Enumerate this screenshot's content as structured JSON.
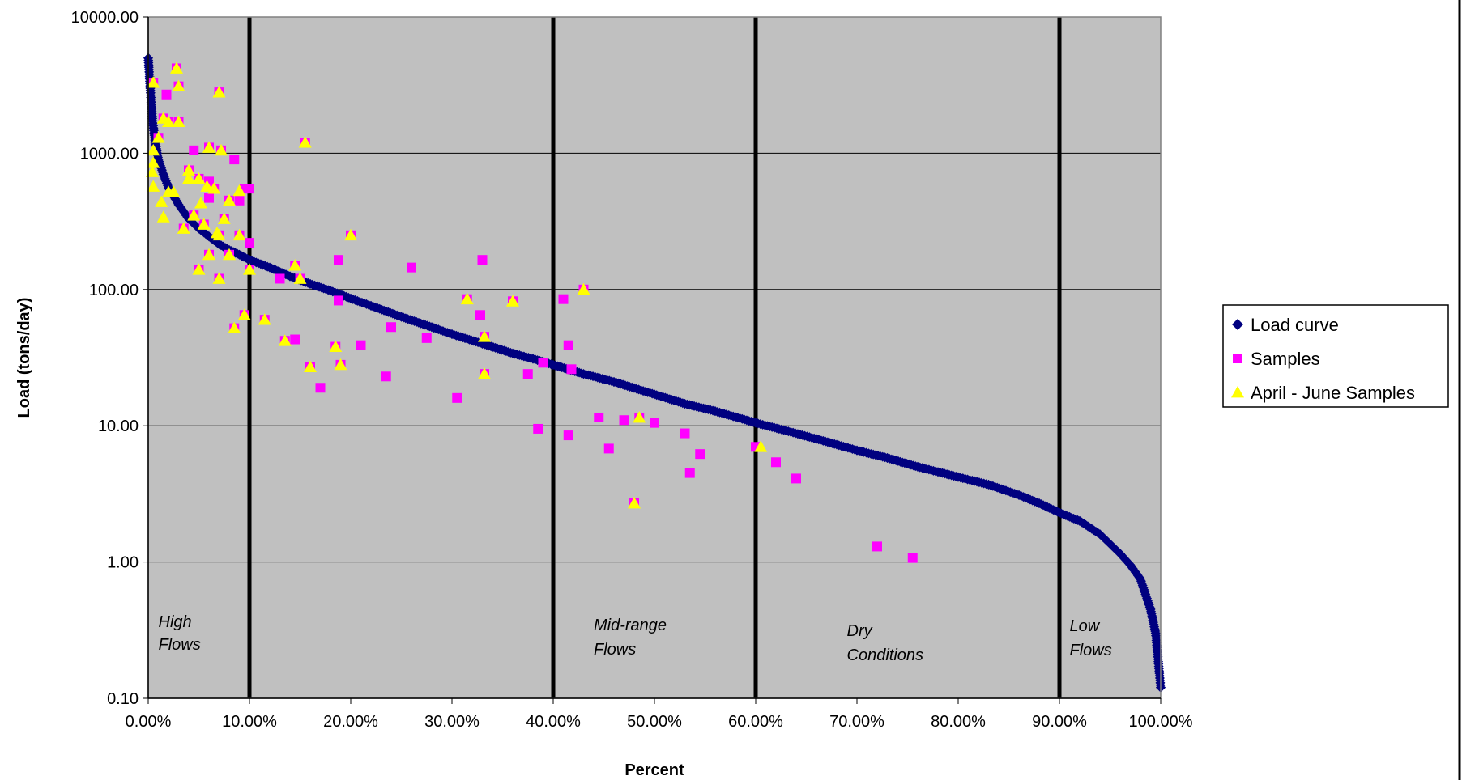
{
  "chart_data": {
    "type": "scatter",
    "title": "",
    "xlabel": "Percent",
    "ylabel": "Load (tons/day)",
    "y_scale": "log",
    "xlim": [
      0,
      100
    ],
    "ylim": [
      0.1,
      10000
    ],
    "x_tick_labels": [
      "0.00%",
      "10.00%",
      "20.00%",
      "30.00%",
      "40.00%",
      "50.00%",
      "60.00%",
      "70.00%",
      "80.00%",
      "90.00%",
      "100.00%"
    ],
    "y_tick_labels": [
      "0.10",
      "1.00",
      "10.00",
      "100.00",
      "1000.00",
      "10000.00"
    ],
    "grid": "horizontal",
    "legend_position": "right",
    "colors": {
      "plot_bg": "#c0c0c0",
      "load_curve": "#000080",
      "samples": "#ff00ff",
      "april_june": "#ffff00"
    },
    "zone_dividers": [
      10,
      40,
      60,
      90
    ],
    "zones": [
      {
        "x": 1,
        "lines": [
          "High",
          "Flows"
        ]
      },
      {
        "x": 44,
        "lines": [
          "Mid-range",
          "Flows"
        ]
      },
      {
        "x": 69,
        "lines": [
          "Dry",
          "Conditions"
        ]
      },
      {
        "x": 91,
        "lines": [
          "Low",
          "Flows"
        ]
      }
    ],
    "series": [
      {
        "name": "Load curve",
        "marker": "diamond",
        "points": [
          [
            0,
            5000
          ],
          [
            0.2,
            3000
          ],
          [
            0.4,
            1800
          ],
          [
            0.7,
            1200
          ],
          [
            1,
            900
          ],
          [
            1.5,
            700
          ],
          [
            2,
            560
          ],
          [
            3,
            420
          ],
          [
            4,
            330
          ],
          [
            5,
            280
          ],
          [
            6,
            245
          ],
          [
            7,
            215
          ],
          [
            8,
            195
          ],
          [
            9,
            180
          ],
          [
            10,
            165
          ],
          [
            12,
            145
          ],
          [
            14,
            125
          ],
          [
            16,
            110
          ],
          [
            18,
            98
          ],
          [
            20,
            86
          ],
          [
            22,
            76
          ],
          [
            25,
            63
          ],
          [
            28,
            53
          ],
          [
            30,
            47
          ],
          [
            33,
            40
          ],
          [
            36,
            34
          ],
          [
            38,
            31
          ],
          [
            40,
            28
          ],
          [
            43,
            24
          ],
          [
            46,
            21
          ],
          [
            50,
            17
          ],
          [
            53,
            14.5
          ],
          [
            56,
            12.8
          ],
          [
            60,
            10.5
          ],
          [
            63,
            9.2
          ],
          [
            66,
            8
          ],
          [
            70,
            6.6
          ],
          [
            73,
            5.8
          ],
          [
            76,
            5
          ],
          [
            80,
            4.2
          ],
          [
            83,
            3.7
          ],
          [
            86,
            3.1
          ],
          [
            88,
            2.7
          ],
          [
            90,
            2.3
          ],
          [
            92,
            2
          ],
          [
            94,
            1.6
          ],
          [
            96,
            1.15
          ],
          [
            97,
            0.95
          ],
          [
            98,
            0.75
          ],
          [
            99,
            0.45
          ],
          [
            99.5,
            0.3
          ],
          [
            100,
            0.12
          ]
        ]
      },
      {
        "name": "Samples",
        "marker": "square",
        "points": [
          [
            0.5,
            3300
          ],
          [
            1.5,
            1800
          ],
          [
            1.8,
            2700
          ],
          [
            2.8,
            4200
          ],
          [
            3,
            3100
          ],
          [
            7,
            2800
          ],
          [
            15.5,
            1200
          ],
          [
            4.5,
            1050
          ],
          [
            6,
            1100
          ],
          [
            7.2,
            1050
          ],
          [
            8.5,
            900
          ],
          [
            1,
            1300
          ],
          [
            2,
            1700
          ],
          [
            3,
            1700
          ],
          [
            4,
            750
          ],
          [
            5,
            650
          ],
          [
            6,
            620
          ],
          [
            6.5,
            550
          ],
          [
            7,
            250
          ],
          [
            8,
            450
          ],
          [
            9,
            450
          ],
          [
            9.5,
            550
          ],
          [
            10,
            550
          ],
          [
            4.5,
            350
          ],
          [
            5.5,
            300
          ],
          [
            3.5,
            280
          ],
          [
            6,
            470
          ],
          [
            7.5,
            330
          ],
          [
            5,
            140
          ],
          [
            6,
            180
          ],
          [
            7,
            120
          ],
          [
            8,
            180
          ],
          [
            9,
            250
          ],
          [
            10,
            220
          ],
          [
            10,
            140
          ],
          [
            9.5,
            65
          ],
          [
            8.5,
            52
          ],
          [
            11.5,
            60
          ],
          [
            13,
            120
          ],
          [
            14.5,
            150
          ],
          [
            15,
            120
          ],
          [
            13.5,
            42
          ],
          [
            14.5,
            43
          ],
          [
            16,
            27
          ],
          [
            17,
            19
          ],
          [
            18.5,
            38
          ],
          [
            18.8,
            165
          ],
          [
            18.8,
            83
          ],
          [
            19,
            28
          ],
          [
            20,
            250
          ],
          [
            21,
            39
          ],
          [
            23.5,
            23
          ],
          [
            24,
            53
          ],
          [
            26,
            145
          ],
          [
            27.5,
            44
          ],
          [
            30.5,
            16
          ],
          [
            31.5,
            85
          ],
          [
            32.8,
            65
          ],
          [
            33,
            165
          ],
          [
            33.2,
            45
          ],
          [
            33.2,
            24
          ],
          [
            36,
            82
          ],
          [
            37.5,
            24
          ],
          [
            38.5,
            9.5
          ],
          [
            39,
            29
          ],
          [
            41,
            85
          ],
          [
            41.5,
            8.5
          ],
          [
            41.5,
            39
          ],
          [
            41.8,
            26
          ],
          [
            43,
            100
          ],
          [
            44.5,
            11.5
          ],
          [
            45.5,
            6.8
          ],
          [
            47,
            11
          ],
          [
            48,
            2.7
          ],
          [
            48.5,
            11.5
          ],
          [
            50,
            10.5
          ],
          [
            53,
            8.8
          ],
          [
            53.5,
            4.5
          ],
          [
            54.5,
            6.2
          ],
          [
            60,
            7
          ],
          [
            62,
            5.4
          ],
          [
            64,
            4.1
          ],
          [
            72,
            1.3
          ],
          [
            75.5,
            1.07
          ]
        ]
      },
      {
        "name": "April - June Samples",
        "marker": "triangle",
        "points": [
          [
            0.5,
            3300
          ],
          [
            1.5,
            1800
          ],
          [
            2.8,
            4200
          ],
          [
            3,
            3100
          ],
          [
            7,
            2800
          ],
          [
            15.5,
            1200
          ],
          [
            6,
            1100
          ],
          [
            7.2,
            1050
          ],
          [
            0.5,
            1050
          ],
          [
            1,
            1300
          ],
          [
            2,
            1700
          ],
          [
            3,
            1700
          ],
          [
            4,
            750
          ],
          [
            5,
            650
          ],
          [
            4,
            650
          ],
          [
            6.5,
            550
          ],
          [
            0.5,
            570
          ],
          [
            0.5,
            850
          ],
          [
            0.4,
            730
          ],
          [
            1.3,
            440
          ],
          [
            2,
            520
          ],
          [
            2.5,
            520
          ],
          [
            1.5,
            340
          ],
          [
            8,
            450
          ],
          [
            9,
            530
          ],
          [
            4.5,
            350
          ],
          [
            5.5,
            300
          ],
          [
            5.2,
            430
          ],
          [
            3.5,
            280
          ],
          [
            5.8,
            570
          ],
          [
            7.5,
            330
          ],
          [
            5,
            140
          ],
          [
            6,
            180
          ],
          [
            7,
            120
          ],
          [
            7,
            250
          ],
          [
            8,
            180
          ],
          [
            9,
            250
          ],
          [
            6.8,
            260
          ],
          [
            10,
            140
          ],
          [
            9.5,
            65
          ],
          [
            8.5,
            52
          ],
          [
            11.5,
            60
          ],
          [
            14.5,
            150
          ],
          [
            15,
            120
          ],
          [
            13.5,
            42
          ],
          [
            16,
            27
          ],
          [
            18.5,
            38
          ],
          [
            19,
            28
          ],
          [
            20,
            250
          ],
          [
            31.5,
            85
          ],
          [
            33.2,
            45
          ],
          [
            33.2,
            24
          ],
          [
            36,
            82
          ],
          [
            43,
            100
          ],
          [
            48,
            2.7
          ],
          [
            48.5,
            11.5
          ],
          [
            60.5,
            7
          ]
        ]
      }
    ]
  }
}
